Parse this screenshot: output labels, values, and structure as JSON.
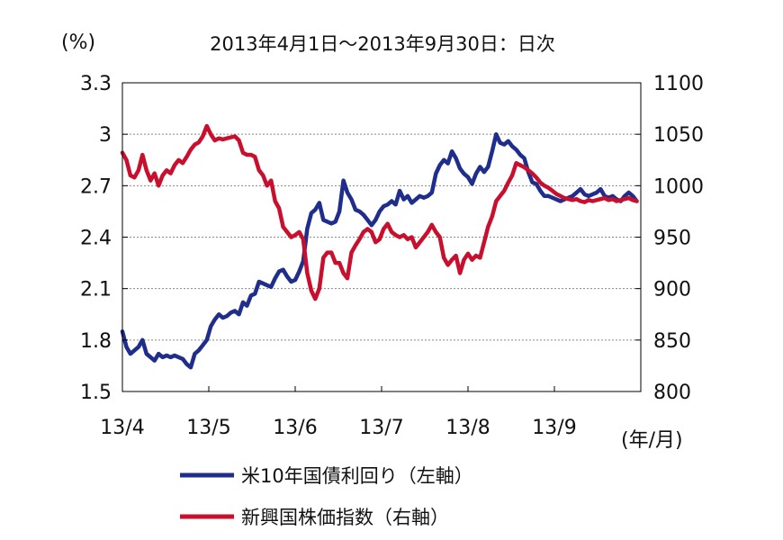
{
  "chart_data": {
    "type": "line",
    "title": "2013年4月1日～2013年9月30日：日次",
    "left_unit": "(%)",
    "x_unit": "(年/月)",
    "x_ticks": [
      "13/4",
      "13/5",
      "13/6",
      "13/7",
      "13/8",
      "13/9"
    ],
    "y_left": {
      "range": [
        1.5,
        3.3
      ],
      "ticks": [
        "1.5",
        "1.8",
        "2.1",
        "2.4",
        "2.7",
        "3",
        "3.3"
      ]
    },
    "y_right": {
      "range": [
        800,
        1100
      ],
      "ticks": [
        "800",
        "850",
        "900",
        "950",
        "1000",
        "1050",
        "1100"
      ]
    },
    "grid": true,
    "legend_position": "bottom",
    "series": [
      {
        "name": "米10年国債利回り（左軸）",
        "axis": "left",
        "color": "#1f2e8c",
        "x": [
          0,
          1,
          2,
          3,
          4,
          5,
          6,
          7,
          8,
          9,
          10,
          11,
          12,
          13,
          14,
          15,
          16,
          17,
          18,
          19,
          20,
          21,
          22,
          23,
          24,
          25,
          26,
          27,
          28,
          29,
          30,
          31,
          32,
          33,
          34,
          35,
          36,
          37,
          38,
          39,
          40,
          41,
          42,
          43,
          44,
          45,
          46,
          47,
          48,
          49,
          50,
          51,
          52,
          53,
          54,
          55,
          56,
          57,
          58,
          59,
          60,
          61,
          62,
          63,
          64,
          65,
          66,
          67,
          68,
          69,
          70,
          71,
          72,
          73,
          74,
          75,
          76,
          77,
          78,
          79,
          80,
          81,
          82,
          83,
          84,
          85,
          86,
          87,
          88,
          89,
          90,
          91,
          92,
          93,
          94,
          95,
          96,
          97,
          98,
          99,
          100,
          101,
          102,
          103,
          104,
          105,
          106,
          107,
          108,
          109,
          110,
          111,
          112,
          113,
          114,
          115,
          116,
          117,
          118,
          119,
          120,
          121,
          122,
          123,
          124,
          125,
          126,
          127,
          128
        ],
        "values": [
          1.85,
          1.76,
          1.72,
          1.74,
          1.76,
          1.8,
          1.72,
          1.7,
          1.68,
          1.72,
          1.7,
          1.71,
          1.7,
          1.71,
          1.7,
          1.69,
          1.66,
          1.64,
          1.72,
          1.74,
          1.77,
          1.8,
          1.88,
          1.92,
          1.95,
          1.93,
          1.94,
          1.96,
          1.97,
          1.95,
          2.02,
          2.0,
          2.06,
          2.07,
          2.14,
          2.13,
          2.12,
          2.11,
          2.16,
          2.2,
          2.21,
          2.17,
          2.14,
          2.15,
          2.2,
          2.26,
          2.45,
          2.54,
          2.56,
          2.6,
          2.5,
          2.49,
          2.48,
          2.49,
          2.55,
          2.73,
          2.66,
          2.62,
          2.56,
          2.55,
          2.53,
          2.5,
          2.47,
          2.5,
          2.55,
          2.58,
          2.59,
          2.61,
          2.59,
          2.67,
          2.62,
          2.64,
          2.6,
          2.62,
          2.64,
          2.63,
          2.64,
          2.66,
          2.77,
          2.82,
          2.85,
          2.83,
          2.9,
          2.86,
          2.8,
          2.77,
          2.75,
          2.71,
          2.77,
          2.81,
          2.78,
          2.81,
          2.9,
          3.0,
          2.95,
          2.94,
          2.96,
          2.93,
          2.91,
          2.88,
          2.86,
          2.78,
          2.72,
          2.71,
          2.67,
          2.64,
          2.64,
          2.63,
          2.62,
          2.61,
          2.62,
          2.63,
          2.64,
          2.66,
          2.68,
          2.65,
          2.64,
          2.65,
          2.66,
          2.68,
          2.64,
          2.63,
          2.64,
          2.62,
          2.61,
          2.64,
          2.66,
          2.64,
          2.61
        ]
      },
      {
        "name": "新興国株価指数（右軸）",
        "axis": "right",
        "color": "#c8102e",
        "x": [
          0,
          1,
          2,
          3,
          4,
          5,
          6,
          7,
          8,
          9,
          10,
          11,
          12,
          13,
          14,
          15,
          16,
          17,
          18,
          19,
          20,
          21,
          22,
          23,
          24,
          25,
          26,
          27,
          28,
          29,
          30,
          31,
          32,
          33,
          34,
          35,
          36,
          37,
          38,
          39,
          40,
          41,
          42,
          43,
          44,
          45,
          46,
          47,
          48,
          49,
          50,
          51,
          52,
          53,
          54,
          55,
          56,
          57,
          58,
          59,
          60,
          61,
          62,
          63,
          64,
          65,
          66,
          67,
          68,
          69,
          70,
          71,
          72,
          73,
          74,
          75,
          76,
          77,
          78,
          79,
          80,
          81,
          82,
          83,
          84,
          85,
          86,
          87,
          88,
          89,
          90,
          91,
          92,
          93,
          94,
          95,
          96,
          97,
          98,
          99,
          100,
          101,
          102,
          103,
          104,
          105,
          106,
          107,
          108,
          109,
          110,
          111,
          112,
          113,
          114,
          115,
          116,
          117,
          118,
          119,
          120,
          121,
          122,
          123,
          124,
          125,
          126,
          127,
          128
        ],
        "values": [
          1032,
          1025,
          1010,
          1008,
          1015,
          1030,
          1015,
          1005,
          1012,
          1000,
          1010,
          1015,
          1012,
          1020,
          1025,
          1022,
          1028,
          1035,
          1040,
          1042,
          1048,
          1058,
          1050,
          1044,
          1046,
          1045,
          1046,
          1047,
          1048,
          1044,
          1032,
          1030,
          1030,
          1028,
          1015,
          1010,
          1000,
          1005,
          985,
          978,
          960,
          955,
          950,
          952,
          955,
          948,
          915,
          898,
          890,
          900,
          930,
          935,
          935,
          925,
          925,
          915,
          910,
          935,
          942,
          948,
          955,
          958,
          955,
          945,
          948,
          958,
          963,
          955,
          952,
          950,
          952,
          948,
          950,
          940,
          945,
          950,
          955,
          962,
          955,
          950,
          930,
          923,
          928,
          932,
          915,
          928,
          934,
          928,
          932,
          930,
          945,
          960,
          970,
          985,
          990,
          995,
          1003,
          1010,
          1022,
          1020,
          1018,
          1015,
          1012,
          1008,
          1003,
          1000,
          998,
          995,
          992,
          990,
          988,
          987,
          986,
          987,
          985,
          984,
          986,
          985,
          986,
          987,
          988,
          986,
          987,
          985,
          986,
          987,
          988,
          986,
          985
        ]
      }
    ]
  }
}
